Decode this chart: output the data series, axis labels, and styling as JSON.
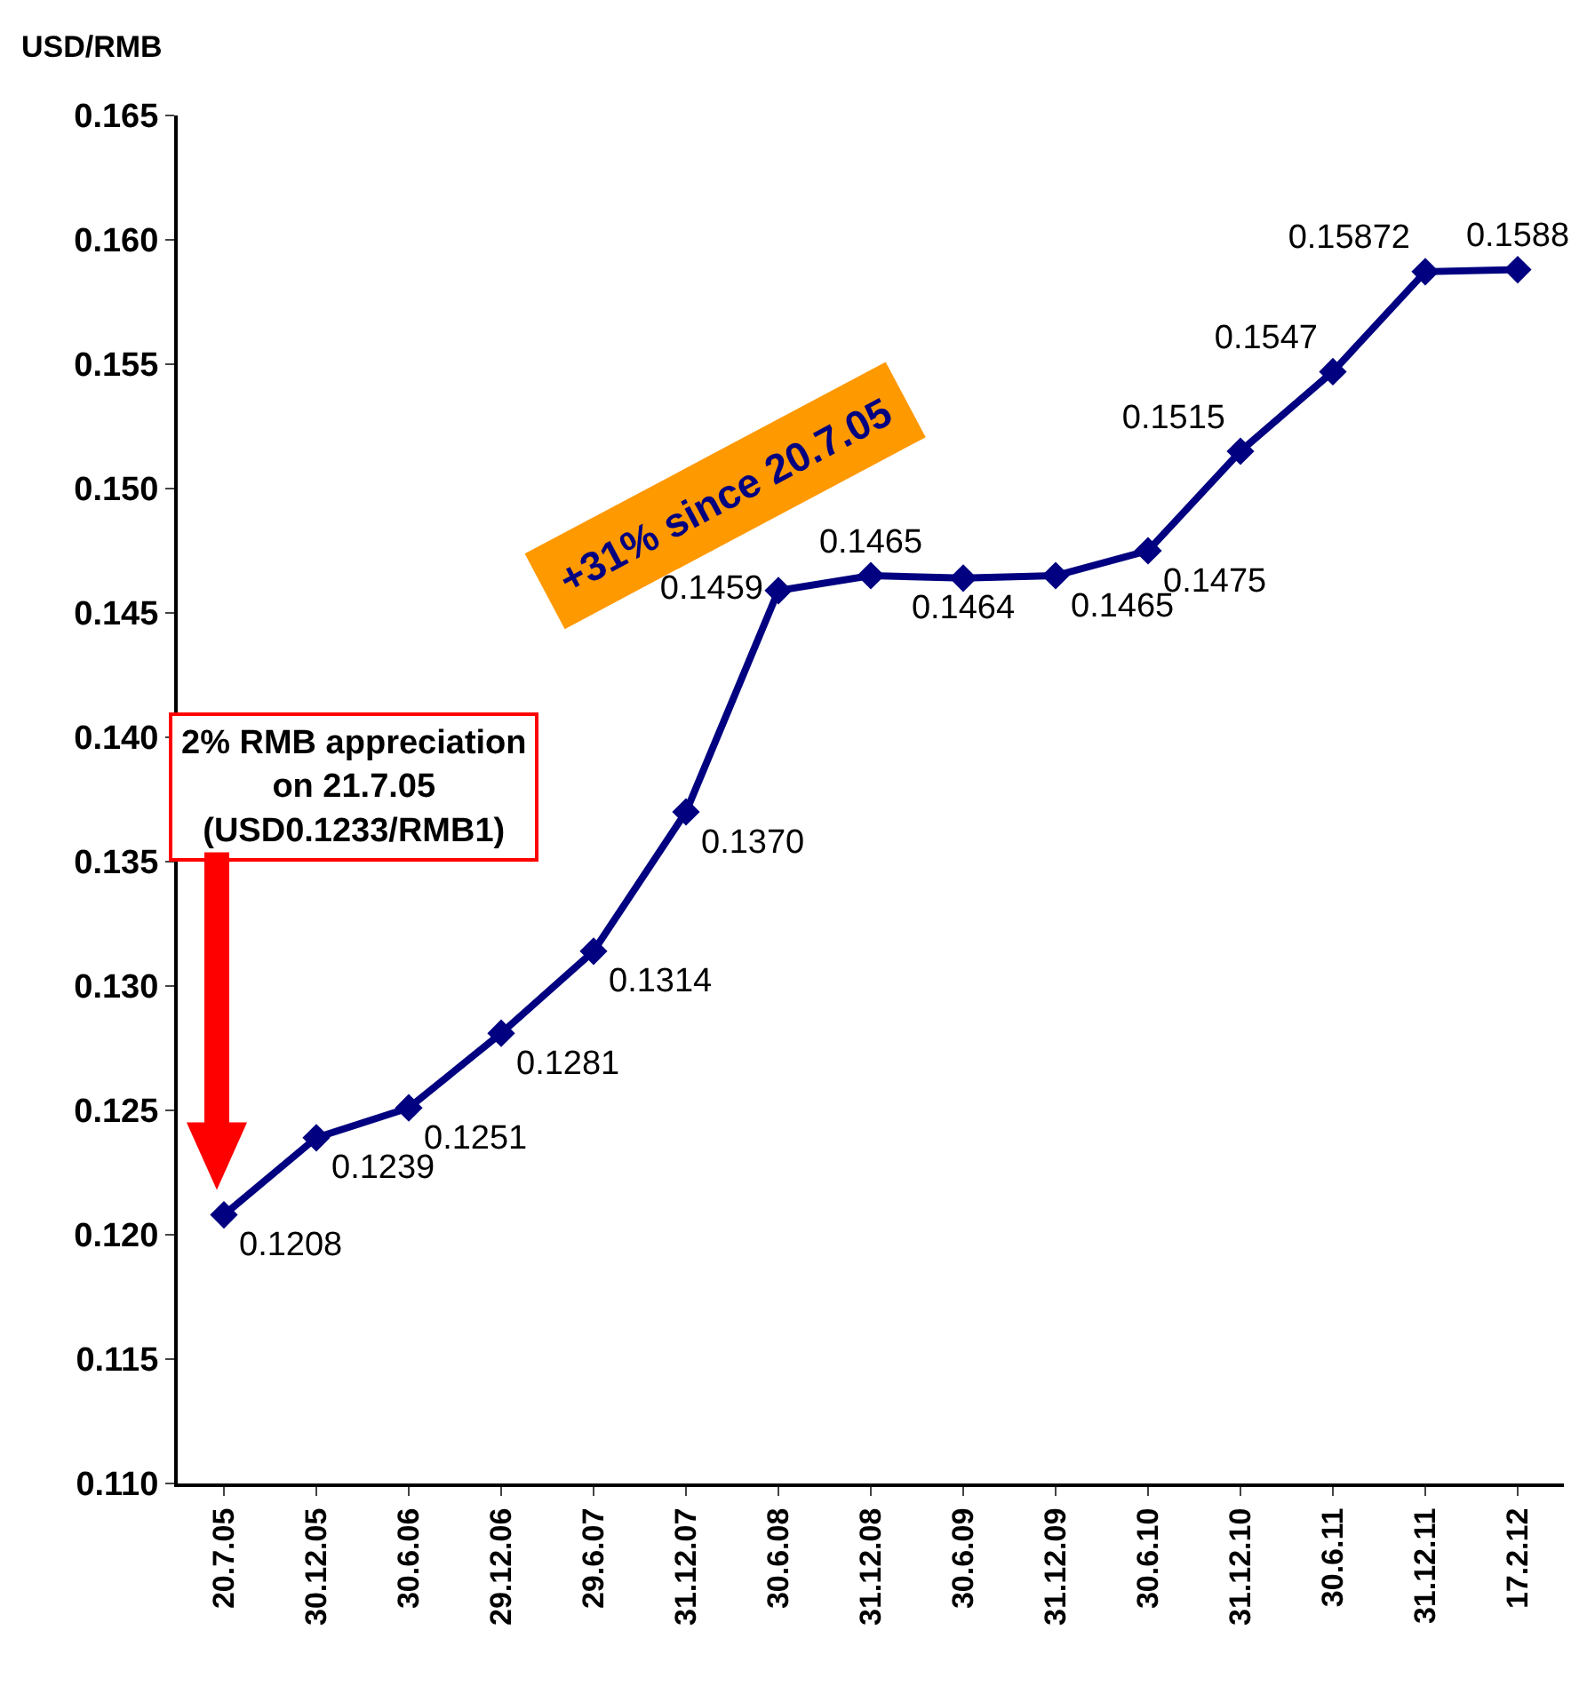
{
  "chart_data": {
    "type": "line",
    "ylabel": "USD/RMB",
    "categories": [
      "20.7.05",
      "30.12.05",
      "30.6.06",
      "29.12.06",
      "29.6.07",
      "31.12.07",
      "30.6.08",
      "31.12.08",
      "30.6.09",
      "31.12.09",
      "30.6.10",
      "31.12.10",
      "30.6.11",
      "31.12.11",
      "17.2.12"
    ],
    "series": [
      {
        "color": "#000080",
        "values": [
          0.1208,
          0.1239,
          0.1251,
          0.1281,
          0.1314,
          0.137,
          0.1459,
          0.1465,
          0.1464,
          0.1465,
          0.1475,
          0.1515,
          0.1547,
          0.15872,
          0.1588
        ],
        "value_labels": [
          "0.1208",
          "0.1239",
          "0.1251",
          "0.1281",
          "0.1314",
          "0.1370",
          "0.1459",
          "0.1465",
          "0.1464",
          "0.1465",
          "0.1475",
          "0.1515",
          "0.1547",
          "0.15872",
          "0.1588"
        ]
      }
    ],
    "ylim": [
      0.11,
      0.165
    ],
    "yticks": [
      {
        "value": 0.11,
        "label": "0.110"
      },
      {
        "value": 0.115,
        "label": "0.115"
      },
      {
        "value": 0.12,
        "label": "0.120"
      },
      {
        "value": 0.125,
        "label": "0.125"
      },
      {
        "value": 0.13,
        "label": "0.130"
      },
      {
        "value": 0.135,
        "label": "0.135"
      },
      {
        "value": 0.14,
        "label": "0.140"
      },
      {
        "value": 0.145,
        "label": "0.145"
      },
      {
        "value": 0.15,
        "label": "0.150"
      },
      {
        "value": 0.155,
        "label": "0.155"
      },
      {
        "value": 0.16,
        "label": "0.160"
      },
      {
        "value": 0.165,
        "label": "0.165"
      }
    ],
    "annotations": [
      "2% RMB appreciation\non 21.7.05\n(USD0.1233/RMB1)",
      "+31% since 20.7.05"
    ],
    "marker": "diamond",
    "line_style": "solid",
    "grid": false,
    "legend": false
  }
}
